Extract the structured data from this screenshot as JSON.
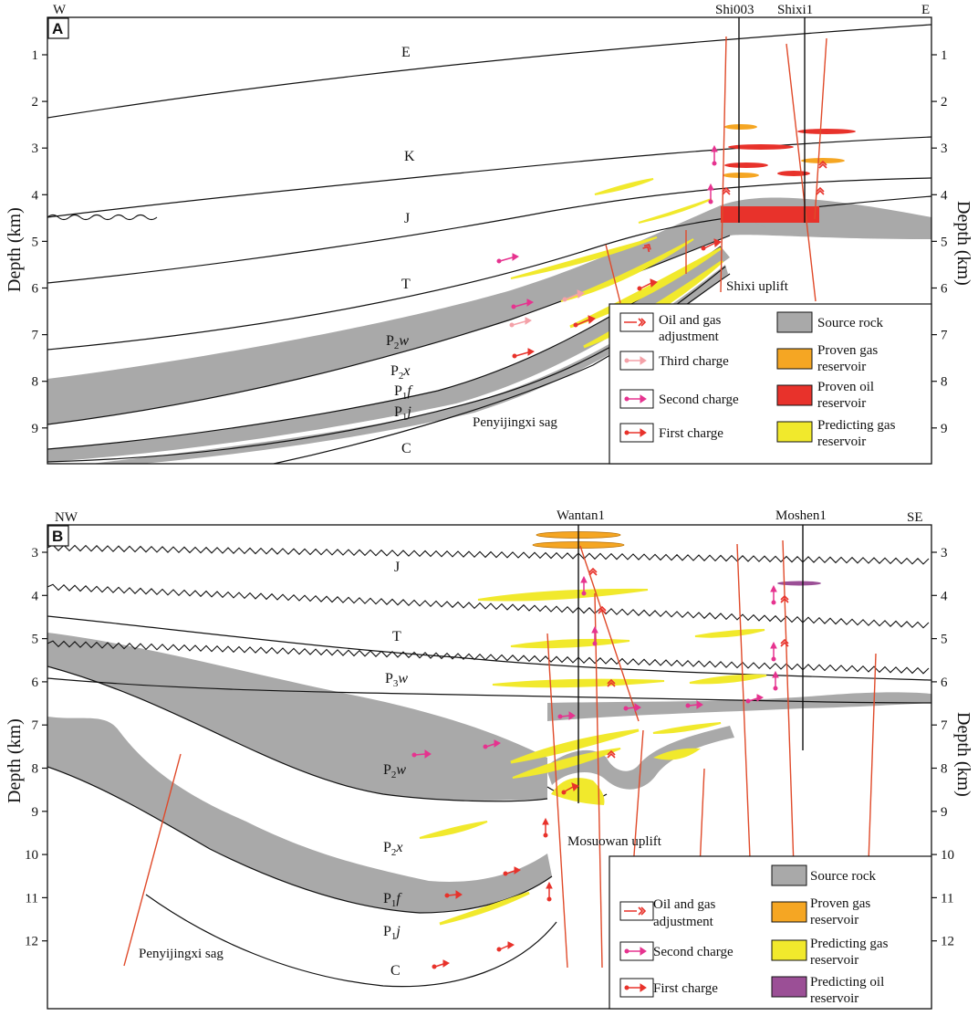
{
  "colors": {
    "source_rock": "#a9a9a9",
    "proven_gas": "#f5a623",
    "proven_oil": "#e8322b",
    "predicting_gas": "#f1e92c",
    "predicting_oil": "#9b4f96",
    "fault": "#e04a2a",
    "first_charge": "#e8322b",
    "second_charge": "#e6338f",
    "third_charge": "#f4a1a8",
    "adjustment": "#e8322b"
  },
  "icons": {
    "adjustment": "double-chevron-arrow-icon",
    "charge": "dot-arrow-icon"
  },
  "panelA": {
    "tag": "A",
    "dir_left": "W",
    "dir_right": "E",
    "wells": [
      "Shi003",
      "Shixi1"
    ],
    "depth_ticks": [
      "1",
      "2",
      "3",
      "4",
      "5",
      "6",
      "7",
      "8",
      "9"
    ],
    "axis_label": "Depth (km)",
    "units": {
      "E": "E",
      "K": "K",
      "J": "J",
      "T": "T",
      "P2w": {
        "main": "P",
        "sub": "2",
        "tail": "w"
      },
      "P2x": {
        "main": "P",
        "sub": "2",
        "tail": "x"
      },
      "P1f": {
        "main": "P",
        "sub": "1",
        "tail": "f"
      },
      "P1j": {
        "main": "P",
        "sub": "1",
        "tail": "j"
      },
      "C": "C"
    },
    "places": {
      "uplift": "Shixi uplift",
      "sag": "Penyijingxi sag"
    },
    "legend": {
      "adjustment": "Oil and gas adjustment",
      "third_charge": "Third charge",
      "second_charge": "Second charge",
      "first_charge": "First charge",
      "source_rock": "Source rock",
      "proven_gas": "Proven gas reservoir",
      "proven_oil": "Proven oil reservoir",
      "predicting_gas": "Predicting gas reservoir"
    }
  },
  "panelB": {
    "tag": "B",
    "dir_left": "NW",
    "dir_right": "SE",
    "wells": [
      "Wantan1",
      "Moshen1"
    ],
    "depth_ticks": [
      "3",
      "4",
      "5",
      "6",
      "7",
      "8",
      "9",
      "10",
      "11",
      "12"
    ],
    "axis_label": "Depth (km)",
    "units": {
      "J": "J",
      "T": "T",
      "P3w": {
        "main": "P",
        "sub": "3",
        "tail": "w"
      },
      "P2w": {
        "main": "P",
        "sub": "2",
        "tail": "w"
      },
      "P2x": {
        "main": "P",
        "sub": "2",
        "tail": "x"
      },
      "P1f": {
        "main": "P",
        "sub": "1",
        "tail": "f"
      },
      "P1j": {
        "main": "P",
        "sub": "1",
        "tail": "j"
      },
      "C": "C"
    },
    "places": {
      "uplift": "Mosuowan uplift",
      "sag": "Penyijingxi sag"
    },
    "legend": {
      "adjustment": "Oil and gas adjustment",
      "second_charge": "Second charge",
      "first_charge": "First charge",
      "source_rock": "Source rock",
      "proven_gas": "Proven gas reservoir",
      "predicting_gas": "Predicting gas reservoir",
      "predicting_oil": "Predicting oil reservoir"
    }
  }
}
